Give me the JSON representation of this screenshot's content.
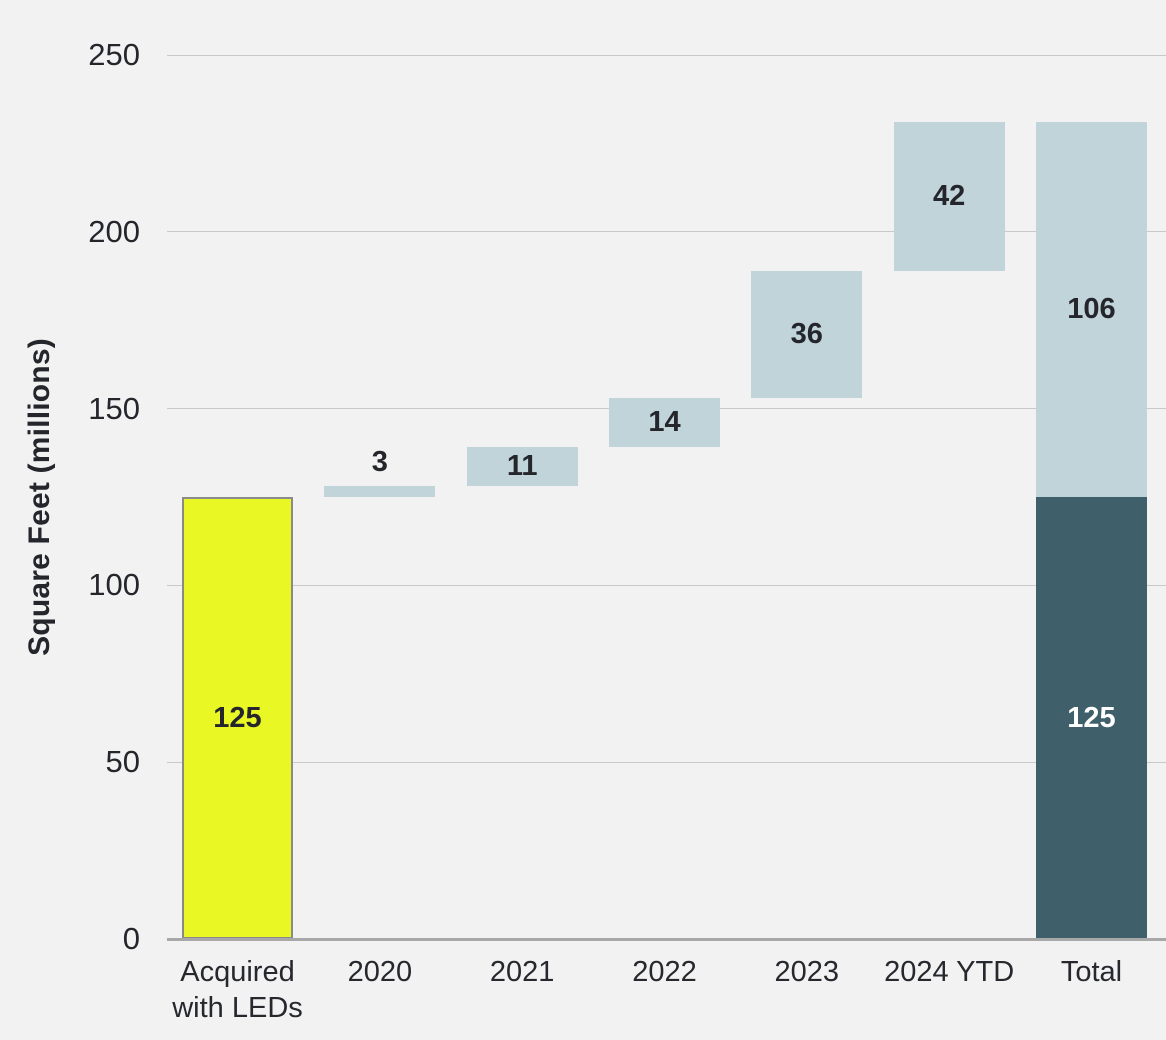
{
  "chart_data": {
    "type": "bar",
    "subtype": "waterfall",
    "title": "",
    "xlabel": "",
    "ylabel": "Square Feet (millions)",
    "ylim": [
      0,
      250
    ],
    "yticks": [
      0,
      50,
      100,
      150,
      200,
      250
    ],
    "grid": true,
    "legend": false,
    "categories": [
      "Acquired\nwith LEDs",
      "2020",
      "2021",
      "2022",
      "2023",
      "2024 YTD",
      "Total"
    ],
    "palette": {
      "background": "#f2f2f2",
      "highlight": "#e9f724",
      "highlight_border": "#8a8a8a",
      "step": "#c1d4da",
      "total_base": "#3f5f6b",
      "text": "#24262c",
      "text_on_dark": "#ffffff",
      "gridline": "#c9c9c9",
      "axis_line": "#a8a8a8"
    },
    "columns": [
      {
        "label": "Acquired\nwith LEDs",
        "segments": [
          {
            "from": 0,
            "to": 125,
            "value": 125,
            "fill": "highlight",
            "outlined": true,
            "text": "dark",
            "value_placement": "inside"
          }
        ]
      },
      {
        "label": "2020",
        "segments": [
          {
            "from": 125,
            "to": 128,
            "value": 3,
            "fill": "step",
            "outlined": false,
            "text": "dark",
            "value_placement": "above"
          }
        ]
      },
      {
        "label": "2021",
        "segments": [
          {
            "from": 128,
            "to": 139,
            "value": 11,
            "fill": "step",
            "outlined": false,
            "text": "dark",
            "value_placement": "inside"
          }
        ]
      },
      {
        "label": "2022",
        "segments": [
          {
            "from": 139,
            "to": 153,
            "value": 14,
            "fill": "step",
            "outlined": false,
            "text": "dark",
            "value_placement": "inside"
          }
        ]
      },
      {
        "label": "2023",
        "segments": [
          {
            "from": 153,
            "to": 189,
            "value": 36,
            "fill": "step",
            "outlined": false,
            "text": "dark",
            "value_placement": "inside"
          }
        ]
      },
      {
        "label": "2024 YTD",
        "segments": [
          {
            "from": 189,
            "to": 231,
            "value": 42,
            "fill": "step",
            "outlined": false,
            "text": "dark",
            "value_placement": "inside"
          }
        ]
      },
      {
        "label": "Total",
        "segments": [
          {
            "from": 0,
            "to": 125,
            "value": 125,
            "fill": "total_base",
            "outlined": false,
            "text": "white",
            "value_placement": "inside"
          },
          {
            "from": 125,
            "to": 231,
            "value": 106,
            "fill": "step",
            "outlined": false,
            "text": "dark",
            "value_placement": "inside"
          }
        ]
      }
    ]
  }
}
